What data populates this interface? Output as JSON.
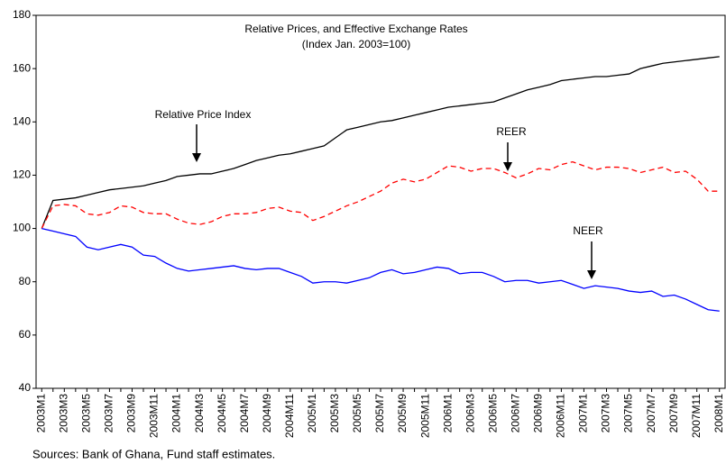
{
  "chart_data": {
    "type": "line",
    "title": "Relative Prices, and Effective Exchange Rates",
    "subtitle": "(Index Jan. 2003=100)",
    "source": "Sources: Bank of Ghana, Fund staff estimates.",
    "categories": [
      "2003M1",
      null,
      "2003M3",
      null,
      "2003M5",
      null,
      "2003M7",
      null,
      "2003M9",
      null,
      "2003M11",
      null,
      "2004M1",
      null,
      "2004M3",
      null,
      "2004M5",
      null,
      "2004M7",
      null,
      "2004M9",
      null,
      "2004M11",
      null,
      "2005M1",
      null,
      "2005M3",
      null,
      "2005M5",
      null,
      "2005M7",
      null,
      "2005M9",
      null,
      "2005M11",
      null,
      "2006M1",
      null,
      "2006M3",
      null,
      "2006M5",
      null,
      "2006M7",
      null,
      "2006M9",
      null,
      "2006M11",
      null,
      "2007M1",
      null,
      "2007M3",
      null,
      "2007M5",
      null,
      "2007M7",
      null,
      "2007M9",
      null,
      "2007M11",
      null,
      "2008M1"
    ],
    "series": [
      {
        "name": "Relative Price Index",
        "color": "#000000",
        "dash": false,
        "values": [
          100,
          110.5,
          111,
          111.5,
          112.5,
          113.5,
          114.5,
          115,
          115.5,
          116,
          117,
          118,
          119.5,
          120,
          120.5,
          120.5,
          121.5,
          122.5,
          124,
          125.5,
          126.5,
          127.5,
          128,
          129,
          130,
          131,
          134,
          137,
          138,
          139,
          140,
          140.5,
          141.5,
          142.5,
          143.5,
          144.5,
          145.5,
          146,
          146.5,
          147,
          147.5,
          149,
          150.5,
          152,
          153,
          154,
          155.5,
          156,
          156.5,
          157,
          157,
          157.5,
          158,
          160,
          161,
          162,
          162.5,
          163,
          163.5,
          164,
          164.5
        ]
      },
      {
        "name": "REER",
        "color": "#ff0000",
        "dash": true,
        "values": [
          100,
          108.5,
          109,
          108.5,
          105.5,
          105,
          106,
          108.5,
          108,
          106,
          105.5,
          105.5,
          103.5,
          102,
          101.5,
          102.5,
          104.5,
          105.5,
          105.5,
          106,
          107.5,
          108,
          106.5,
          106,
          103,
          104.5,
          106.5,
          108.5,
          110,
          112,
          114,
          117,
          118.5,
          117.5,
          118.5,
          121,
          123.5,
          123,
          121.5,
          122.5,
          122.5,
          121,
          119,
          120.5,
          122.5,
          122,
          124,
          125,
          123.5,
          122,
          123,
          123,
          122.5,
          121,
          122,
          123,
          121,
          121.5,
          118.5,
          114,
          114
        ]
      },
      {
        "name": "NEER",
        "color": "#0000ff",
        "dash": false,
        "values": [
          100,
          99,
          98,
          97,
          93,
          92,
          93,
          94,
          93,
          90,
          89.5,
          87,
          85,
          84,
          84.5,
          85,
          85.5,
          86,
          85,
          84.5,
          85,
          85,
          83.5,
          82,
          79.5,
          80,
          80,
          79.5,
          80.5,
          81.5,
          83.5,
          84.5,
          83,
          83.5,
          84.5,
          85.5,
          85,
          83,
          83.5,
          83.5,
          82,
          80,
          80.5,
          80.5,
          79.5,
          80,
          80.5,
          79,
          77.5,
          78.5,
          78,
          77.5,
          76.5,
          76,
          76.5,
          74.5,
          75,
          73.5,
          71.5,
          69.5,
          69
        ]
      }
    ],
    "ylim": [
      40,
      180
    ],
    "yticks": [
      40,
      60,
      80,
      100,
      120,
      140,
      160,
      180
    ],
    "grid": false
  }
}
